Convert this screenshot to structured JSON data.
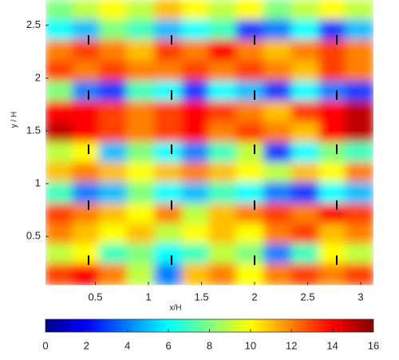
{
  "chart_data": {
    "type": "heatmap",
    "x_label": "x/H",
    "y_label": "y / H",
    "xlim": [
      0.03,
      3.12
    ],
    "ylim": [
      0.04,
      2.74
    ],
    "xticks": [
      0.5,
      1,
      1.5,
      2,
      2.5,
      3
    ],
    "yticks": [
      0.5,
      1,
      1.5,
      2,
      2.5
    ],
    "x": [
      0.16,
      0.42,
      0.67,
      0.93,
      1.19,
      1.45,
      1.7,
      1.96,
      2.22,
      2.48,
      2.74,
      2.99
    ],
    "y": [
      2.64,
      2.45,
      2.26,
      2.06,
      1.87,
      1.68,
      1.48,
      1.29,
      1.1,
      0.91,
      0.71,
      0.52,
      0.33,
      0.14
    ],
    "values": [
      [
        8,
        9,
        10,
        9,
        11,
        10,
        9,
        10,
        8,
        9,
        10,
        9
      ],
      [
        6,
        5,
        8,
        7,
        5,
        6,
        7,
        3,
        4,
        6,
        3,
        5
      ],
      [
        12,
        13,
        12,
        11,
        13,
        12,
        14,
        12,
        11,
        12,
        13,
        12
      ],
      [
        13,
        12,
        13,
        12,
        12,
        13,
        12,
        13,
        12,
        11,
        13,
        12
      ],
      [
        8,
        4,
        3,
        7,
        6,
        3,
        6,
        5,
        3,
        6,
        4,
        3
      ],
      [
        14,
        14,
        13,
        12,
        13,
        14,
        13,
        12,
        11,
        13,
        14,
        15
      ],
      [
        15,
        14,
        13,
        12,
        13,
        14,
        12,
        13,
        12,
        11,
        14,
        15
      ],
      [
        9,
        10,
        5,
        8,
        6,
        4,
        7,
        9,
        3,
        6,
        8,
        7
      ],
      [
        11,
        12,
        11,
        10,
        11,
        12,
        11,
        10,
        9,
        11,
        10,
        12
      ],
      [
        7,
        4,
        5,
        8,
        6,
        5,
        7,
        6,
        4,
        3,
        6,
        5
      ],
      [
        13,
        12,
        11,
        10,
        12,
        9,
        11,
        12,
        13,
        12,
        14,
        13
      ],
      [
        12,
        11,
        10,
        11,
        9,
        10,
        11,
        10,
        12,
        13,
        11,
        12
      ],
      [
        9,
        10,
        7,
        8,
        6,
        7,
        9,
        8,
        4,
        7,
        10,
        9
      ],
      [
        13,
        14,
        12,
        9,
        4,
        11,
        12,
        10,
        12,
        13,
        12,
        13
      ]
    ],
    "colorbar": {
      "lim": [
        0,
        16
      ],
      "ticks": [
        0,
        2,
        4,
        6,
        8,
        10,
        12,
        14,
        16
      ]
    },
    "colormap": "jet"
  }
}
